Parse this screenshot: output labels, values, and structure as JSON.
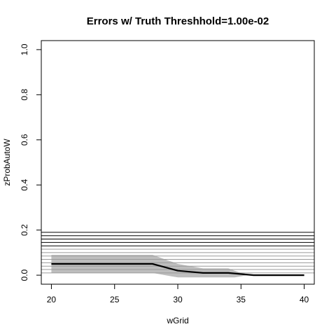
{
  "chart_data": {
    "type": "line",
    "title": "Errors w/ Truth Threshhold=1.00e-02",
    "xlabel": "wGrid",
    "ylabel": "zProbAutoW",
    "xlim": [
      19.2,
      40.8
    ],
    "ylim": [
      -0.04,
      1.04
    ],
    "xticks": [
      20,
      25,
      30,
      35,
      40
    ],
    "yticks": [
      0.0,
      0.2,
      0.4,
      0.6,
      0.8,
      1.0
    ],
    "ytick_labels": [
      "0.0",
      "0.2",
      "0.4",
      "0.6",
      "0.8",
      "1.0"
    ],
    "grid": false,
    "series": [
      {
        "role": "mean",
        "color": "#000000",
        "x": [
          20,
          21,
          22,
          23,
          24,
          25,
          26,
          27,
          28,
          29,
          30,
          31,
          32,
          33,
          34,
          35,
          36,
          37,
          38,
          39,
          40
        ],
        "y": [
          0.05,
          0.05,
          0.05,
          0.05,
          0.05,
          0.05,
          0.05,
          0.05,
          0.05,
          0.035,
          0.02,
          0.015,
          0.01,
          0.01,
          0.01,
          0.005,
          0.0,
          0.0,
          0.0,
          0.0,
          0.0
        ]
      }
    ],
    "band": {
      "color": "#bebebe",
      "x": [
        20,
        21,
        22,
        23,
        24,
        25,
        26,
        27,
        28,
        28.5,
        29,
        29.5,
        30,
        30.5,
        31,
        31.5,
        32,
        33,
        34,
        34.5,
        35,
        35.5,
        36,
        37,
        38,
        39,
        40
      ],
      "upper": [
        0.09,
        0.09,
        0.09,
        0.09,
        0.09,
        0.09,
        0.09,
        0.09,
        0.09,
        0.08,
        0.07,
        0.06,
        0.05,
        0.045,
        0.04,
        0.035,
        0.03,
        0.03,
        0.03,
        0.02,
        0.01,
        0.005,
        0.0,
        0.0,
        0.0,
        0.0,
        0.0
      ],
      "lower": [
        0.01,
        0.01,
        0.01,
        0.01,
        0.01,
        0.01,
        0.01,
        0.01,
        0.01,
        0.005,
        0.0,
        -0.005,
        -0.01,
        -0.01,
        -0.01,
        -0.01,
        -0.01,
        -0.01,
        -0.01,
        -0.01,
        -0.005,
        0.0,
        0.0,
        0.0,
        0.0,
        0.0,
        0.0
      ]
    },
    "hlines": {
      "dark": [
        0.19,
        0.175,
        0.16,
        0.145,
        0.13
      ],
      "grey": [
        0.115,
        0.1,
        0.085,
        0.07,
        0.055,
        0.04,
        0.025,
        0.01
      ]
    },
    "hline_colors": {
      "dark": "#000000",
      "grey": "#9a9a9a"
    }
  }
}
